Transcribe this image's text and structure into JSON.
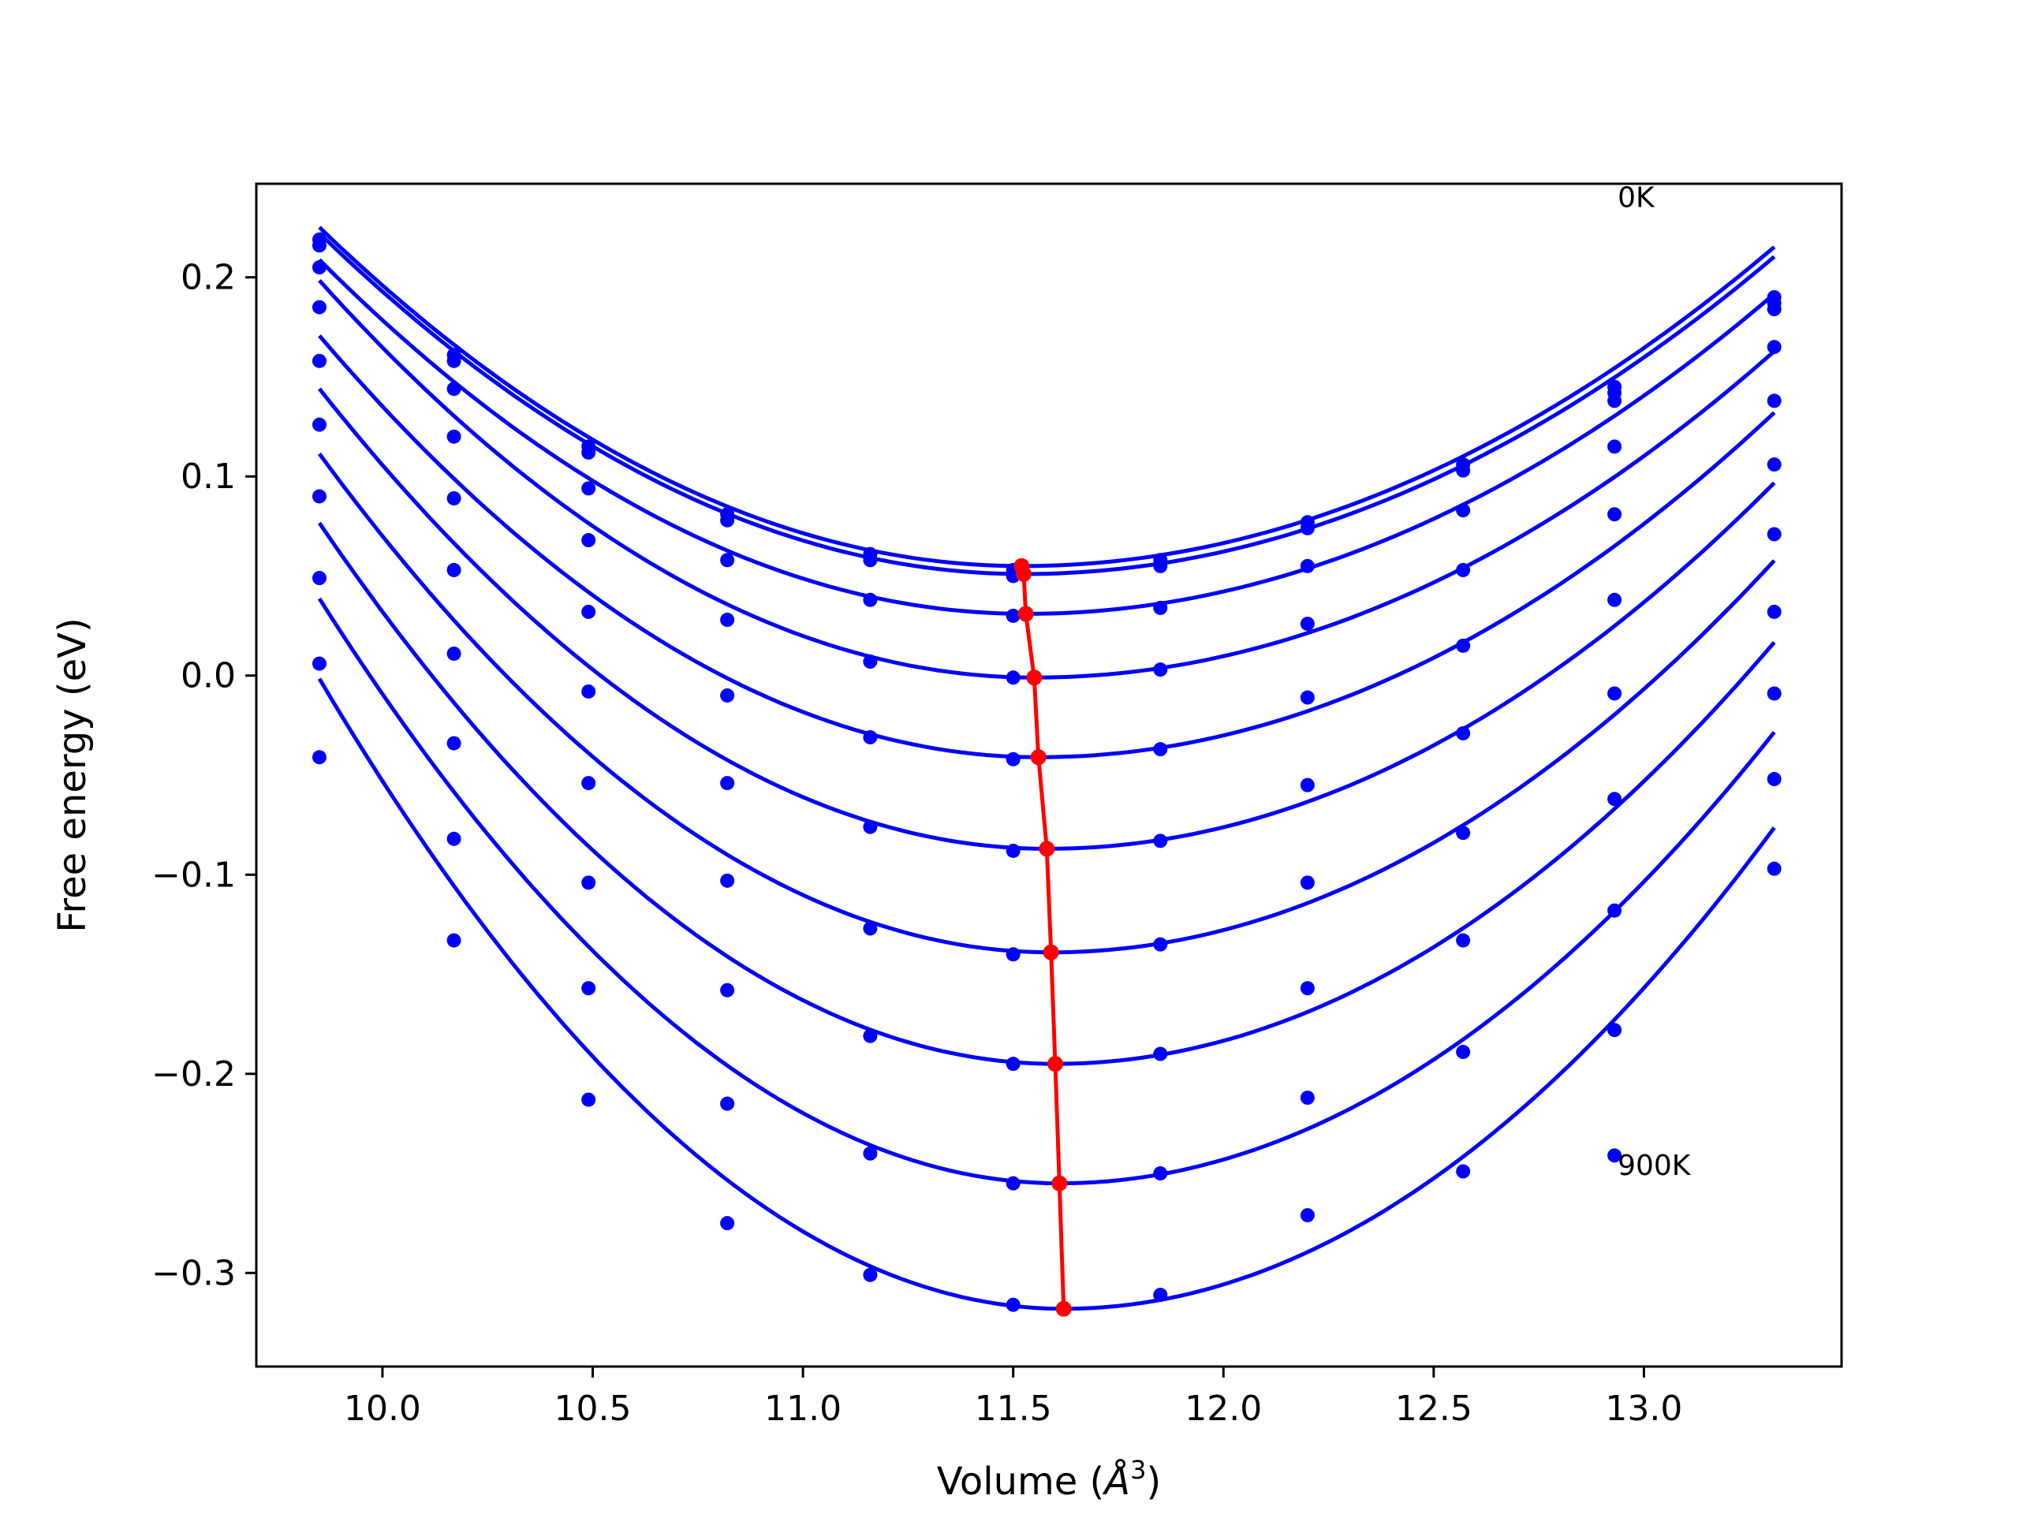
{
  "chart_data": {
    "type": "scatter",
    "title": "",
    "xlabel": "Volume (",
    "xlabel_unit_symbol": "Å",
    "xlabel_unit_power": "3",
    "xlabel_close": ")",
    "ylabel": "Free energy (eV)",
    "xlim": [
      9.7,
      13.47
    ],
    "ylim": [
      -0.347,
      0.247
    ],
    "x_ticks": [
      10.0,
      10.5,
      11.0,
      11.5,
      12.0,
      12.5,
      13.0
    ],
    "x_tick_labels": [
      "10.0",
      "10.5",
      "11.0",
      "11.5",
      "12.0",
      "12.5",
      "13.0"
    ],
    "y_ticks": [
      0.2,
      0.1,
      0.0,
      -0.1,
      -0.2,
      -0.3
    ],
    "y_tick_labels": [
      "0.2",
      "0.1",
      "0.0",
      "−0.1",
      "−0.2",
      "−0.3"
    ],
    "grid": false,
    "legend": "none",
    "colors": {
      "curves": "#0000ff",
      "minima": "#ff0000",
      "axes": "#000000"
    },
    "volumes": [
      9.85,
      10.17,
      10.49,
      10.82,
      11.16,
      11.5,
      11.85,
      12.2,
      12.57,
      12.93,
      13.31
    ],
    "series": [
      {
        "points": [
          0.219,
          0.161,
          0.115,
          0.081,
          0.061,
          0.053,
          0.058,
          0.077,
          0.106,
          0.145,
          0.19
        ],
        "fit": {
          "vmin": 11.52,
          "emin": 0.055,
          "k_left": 0.061,
          "k_right": 0.05
        }
      },
      {
        "points": [
          0.216,
          0.158,
          0.112,
          0.078,
          0.058,
          0.05,
          0.055,
          0.074,
          0.103,
          0.142,
          0.187
        ],
        "fit": {
          "vmin": 11.525,
          "emin": 0.051,
          "k_left": 0.061,
          "k_right": 0.05
        }
      },
      {
        "points": [
          0.205,
          0.144,
          0.094,
          0.058,
          0.038,
          0.03,
          0.034,
          0.055,
          0.083,
          0.138,
          0.184
        ],
        "fit": {
          "vmin": 11.53,
          "emin": 0.031,
          "k_left": 0.063,
          "k_right": 0.0507
        }
      },
      {
        "points": [
          0.185,
          0.12,
          0.068,
          0.028,
          0.007,
          -0.001,
          0.003,
          0.026,
          0.053,
          0.115,
          0.165
        ],
        "fit": {
          "vmin": 11.55,
          "emin": -0.001,
          "k_left": 0.069,
          "k_right": 0.0529
        }
      },
      {
        "points": [
          0.158,
          0.089,
          0.032,
          -0.01,
          -0.031,
          -0.042,
          -0.037,
          -0.011,
          0.015,
          0.081,
          0.138
        ],
        "fit": {
          "vmin": 11.56,
          "emin": -0.041,
          "k_left": 0.0724,
          "k_right": 0.0565
        }
      },
      {
        "points": [
          0.126,
          0.053,
          -0.008,
          -0.054,
          -0.076,
          -0.088,
          -0.083,
          -0.055,
          -0.029,
          0.038,
          0.106
        ],
        "fit": {
          "vmin": 11.58,
          "emin": -0.087,
          "k_left": 0.0772,
          "k_right": 0.0614
        }
      },
      {
        "points": [
          0.09,
          0.011,
          -0.054,
          -0.103,
          -0.127,
          -0.14,
          -0.135,
          -0.104,
          -0.079,
          -0.009,
          0.071
        ],
        "fit": {
          "vmin": 11.59,
          "emin": -0.139,
          "k_left": 0.0827,
          "k_right": 0.0665
        }
      },
      {
        "points": [
          0.049,
          -0.034,
          -0.104,
          -0.158,
          -0.181,
          -0.195,
          -0.19,
          -0.157,
          -0.133,
          -0.062,
          0.032
        ],
        "fit": {
          "vmin": 11.6,
          "emin": -0.195,
          "k_left": 0.0887,
          "k_right": 0.0724
        }
      },
      {
        "points": [
          0.006,
          -0.082,
          -0.157,
          -0.215,
          -0.24,
          -0.255,
          -0.25,
          -0.212,
          -0.189,
          -0.118,
          -0.009
        ],
        "fit": {
          "vmin": 11.61,
          "emin": -0.255,
          "k_left": 0.0948,
          "k_right": 0.0784
        }
      },
      {
        "points": [
          -0.041,
          -0.133,
          -0.213,
          -0.275,
          -0.301,
          -0.316,
          -0.311,
          -0.271,
          -0.249,
          -0.178,
          -0.052
        ],
        "fit": {
          "vmin": 11.62,
          "emin": -0.318,
          "k_left": 0.101,
          "k_right": 0.0846
        }
      }
    ],
    "extra_points": [
      {
        "x": 13.31,
        "y": -0.097
      },
      {
        "x": 12.93,
        "y": -0.241
      }
    ],
    "minima_line": {
      "x": [
        11.52,
        11.525,
        11.53,
        11.55,
        11.56,
        11.58,
        11.59,
        11.6,
        11.61,
        11.62
      ],
      "y": [
        0.055,
        0.051,
        0.031,
        -0.001,
        -0.041,
        -0.087,
        -0.139,
        -0.195,
        -0.255,
        -0.318
      ]
    },
    "annotations": [
      {
        "text": "0K",
        "x": 12.93,
        "y": 0.24
      },
      {
        "text": "900K",
        "x": 12.93,
        "y": -0.246
      }
    ]
  }
}
